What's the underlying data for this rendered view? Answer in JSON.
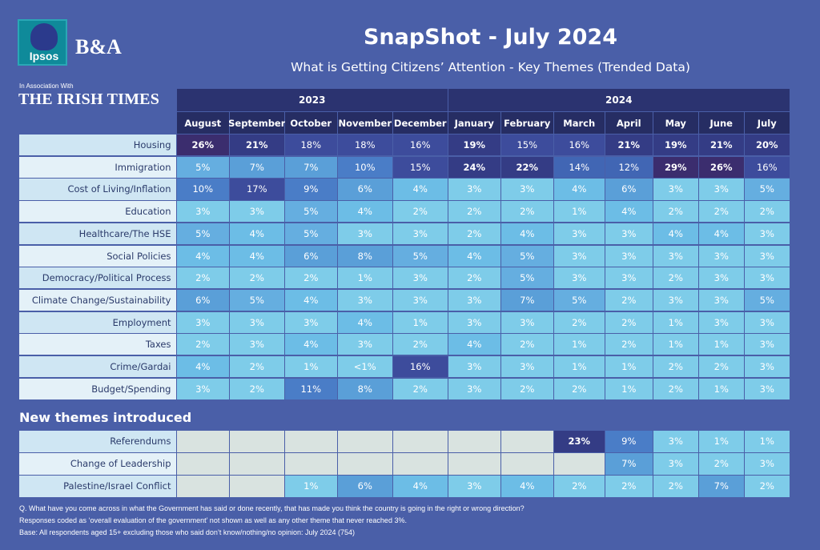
{
  "header": {
    "logo_ipsos": "Ipsos",
    "logo_ba": "B&A",
    "assoc": "In Association With",
    "newspaper": "THE IRISH TIMES",
    "title": "SnapShot - July 2024",
    "subtitle": "What is Getting Citizens’ Attention - Key Themes (Trended Data)"
  },
  "chart_data": {
    "type": "table",
    "years": [
      {
        "label": "2023",
        "span": 5
      },
      {
        "label": "2024",
        "span": 7
      }
    ],
    "columns": [
      "August",
      "September",
      "October",
      "November",
      "December",
      "January",
      "February",
      "March",
      "April",
      "May",
      "June",
      "July"
    ],
    "rows": [
      {
        "label": "Housing",
        "values": [
          "26%",
          "21%",
          "18%",
          "18%",
          "16%",
          "19%",
          "15%",
          "16%",
          "21%",
          "19%",
          "21%",
          "20%"
        ]
      },
      {
        "label": "Immigration",
        "values": [
          "5%",
          "7%",
          "7%",
          "10%",
          "15%",
          "24%",
          "22%",
          "14%",
          "12%",
          "29%",
          "26%",
          "16%"
        ]
      },
      {
        "label": "Cost of Living/Inflation",
        "values": [
          "10%",
          "17%",
          "9%",
          "6%",
          "4%",
          "3%",
          "3%",
          "4%",
          "6%",
          "3%",
          "3%",
          "5%"
        ]
      },
      {
        "label": "Education",
        "values": [
          "3%",
          "3%",
          "5%",
          "4%",
          "2%",
          "2%",
          "2%",
          "1%",
          "4%",
          "2%",
          "2%",
          "2%"
        ]
      },
      {
        "label": "Healthcare/The HSE",
        "values": [
          "5%",
          "4%",
          "5%",
          "3%",
          "3%",
          "2%",
          "4%",
          "3%",
          "3%",
          "4%",
          "4%",
          "3%"
        ]
      },
      {
        "label": "Social Policies",
        "values": [
          "4%",
          "4%",
          "6%",
          "8%",
          "5%",
          "4%",
          "5%",
          "3%",
          "3%",
          "3%",
          "3%",
          "3%"
        ]
      },
      {
        "label": "Democracy/Political Process",
        "values": [
          "2%",
          "2%",
          "2%",
          "1%",
          "3%",
          "2%",
          "5%",
          "3%",
          "3%",
          "2%",
          "3%",
          "3%"
        ]
      },
      {
        "label": "Climate Change/Sustainability",
        "values": [
          "6%",
          "5%",
          "4%",
          "3%",
          "3%",
          "3%",
          "7%",
          "5%",
          "2%",
          "3%",
          "3%",
          "5%"
        ]
      },
      {
        "label": "Employment",
        "values": [
          "3%",
          "3%",
          "3%",
          "4%",
          "1%",
          "3%",
          "3%",
          "2%",
          "2%",
          "1%",
          "3%",
          "3%"
        ]
      },
      {
        "label": "Taxes",
        "values": [
          "2%",
          "3%",
          "4%",
          "3%",
          "2%",
          "4%",
          "2%",
          "1%",
          "2%",
          "1%",
          "1%",
          "3%"
        ]
      },
      {
        "label": "Crime/Gardai",
        "values": [
          "4%",
          "2%",
          "1%",
          "<1%",
          "16%",
          "3%",
          "3%",
          "1%",
          "1%",
          "2%",
          "2%",
          "3%"
        ]
      },
      {
        "label": "Budget/Spending",
        "values": [
          "3%",
          "2%",
          "11%",
          "8%",
          "2%",
          "3%",
          "2%",
          "2%",
          "1%",
          "2%",
          "1%",
          "3%"
        ]
      }
    ],
    "new_themes_title": "New themes introduced",
    "new_rows": [
      {
        "label": "Referendums",
        "values": [
          null,
          null,
          null,
          null,
          null,
          null,
          null,
          "23%",
          "9%",
          "3%",
          "1%",
          "1%"
        ]
      },
      {
        "label": "Change of Leadership",
        "values": [
          null,
          null,
          null,
          null,
          null,
          null,
          null,
          null,
          "7%",
          "3%",
          "2%",
          "3%"
        ]
      },
      {
        "label": "Palestine/Israel Conflict",
        "values": [
          null,
          null,
          "1%",
          "6%",
          "4%",
          "3%",
          "4%",
          "2%",
          "2%",
          "2%",
          "7%",
          "2%"
        ]
      }
    ]
  },
  "footnotes": {
    "q": "Q. What have you come across in what the Government has said or done recently, that has made you think the country is going in the right or wrong direction?",
    "coding": "Responses coded as ‘overall evaluation of the government’ not shown as well as any other theme that never reached 3%.",
    "base": "Base: All respondents aged 15+ excluding those who said don’t know/nothing/no opinion: July 2024 (754)"
  }
}
